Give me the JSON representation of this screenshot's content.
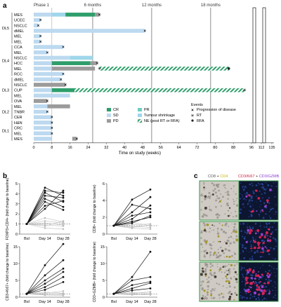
{
  "panel_a": {
    "letter": "a",
    "phase_label": "Phase 1",
    "milestones": [
      "6 months",
      "12 months",
      "18 months"
    ],
    "x_axis_label": "Time on study (weeks)",
    "x_ticks": [
      "0",
      "8",
      "16",
      "24",
      "32",
      "40",
      "48",
      "56",
      "64",
      "72",
      "80",
      "88",
      "96",
      "112",
      "135"
    ],
    "legend": {
      "title": "Events",
      "items": [
        "CR",
        "PR",
        "SD",
        "Tumour shrinkage",
        "PD",
        "NE (post RT or RFA)"
      ],
      "events": [
        "Progression of disease",
        "RT",
        "RFA"
      ]
    }
  },
  "chart_data": [
    {
      "type": "bar",
      "title": "",
      "xlabel": "Time on study (weeks)",
      "x_ticks": [
        0,
        8,
        16,
        24,
        32,
        40,
        48,
        56,
        64,
        72,
        80,
        88,
        96,
        112,
        135
      ],
      "colors": {
        "CR": "#2e9e6b",
        "PR": "#6ccfc0",
        "SD": "#bcd9ef",
        "PD": "#9b9b9b",
        "NE": "#2e9e6b",
        "shrink": "#9fd6ea"
      },
      "rows": [
        {
          "group": "DL5",
          "label": "MES",
          "segs": [
            [
              "SD",
              0,
              8
            ],
            [
              "shrink",
              8,
              14
            ],
            [
              "CR",
              14,
              27
            ],
            [
              "PD",
              27,
              29
            ]
          ],
          "events": [
            "x"
          ],
          "ev_at": [
            29
          ]
        },
        {
          "group": "DL5",
          "label": "UCEC",
          "segs": [
            [
              "SD",
              0,
              3
            ]
          ],
          "events": [
            "x"
          ],
          "ev_at": [
            3
          ]
        },
        {
          "group": "DL5",
          "label": "NSCLC",
          "segs": [
            [
              "SD",
              0,
              2
            ]
          ],
          "events": [
            "x"
          ],
          "ev_at": [
            2
          ]
        },
        {
          "group": "DL5",
          "label": "dMEL",
          "segs": [
            [
              "SD",
              0,
              49
            ]
          ],
          "events": [
            "x"
          ],
          "ev_at": [
            49
          ]
        },
        {
          "group": "DL5",
          "label": "MEL",
          "segs": [
            [
              "SD",
              0,
              3
            ]
          ],
          "events": [
            "x"
          ],
          "ev_at": [
            3
          ]
        },
        {
          "group": "DL5",
          "label": "MEL",
          "segs": [
            [
              "SD",
              0,
              3
            ]
          ],
          "events": [
            "x"
          ],
          "ev_at": [
            3
          ]
        },
        {
          "group": "DL4",
          "label": "CCA",
          "segs": [
            [
              "SD",
              0,
              13
            ]
          ],
          "events": [
            "x"
          ],
          "ev_at": [
            13
          ]
        },
        {
          "group": "DL4",
          "label": "MEL",
          "segs": [
            [
              "SD",
              0,
              6
            ]
          ],
          "events": [
            "x"
          ],
          "ev_at": [
            6
          ]
        },
        {
          "group": "DL4",
          "label": "NSCLC",
          "segs": [
            [
              "SD",
              0,
              16
            ],
            [
              "shrink",
              16,
              26
            ]
          ],
          "events": [],
          "ev_at": []
        },
        {
          "group": "DL4",
          "label": "HCC",
          "segs": [
            [
              "SD",
              0,
              8
            ],
            [
              "CR",
              8,
              25
            ],
            [
              "PD",
              25,
              28
            ]
          ],
          "events": [
            "x"
          ],
          "ev_at": [
            28
          ]
        },
        {
          "group": "DL4",
          "label": "MEL",
          "segs": [
            [
              "SD",
              0,
              8
            ],
            [
              "PD",
              8,
              27
            ],
            [
              "NE",
              29,
              86
            ]
          ],
          "events": [
            "rt",
            "rfa"
          ],
          "ev_at": [
            29,
            86
          ]
        },
        {
          "group": "DL4",
          "label": "RCC",
          "segs": [
            [
              "SD",
              0,
              13
            ]
          ],
          "events": [
            "x"
          ],
          "ev_at": [
            13
          ]
        },
        {
          "group": "DL3",
          "label": "dMEL",
          "segs": [
            [
              "SD",
              0,
              12
            ]
          ],
          "events": [
            "x"
          ],
          "ev_at": [
            12
          ]
        },
        {
          "group": "DL3",
          "label": "NSCLC",
          "segs": [
            [
              "PD",
              0,
              14
            ]
          ],
          "events": [
            "x"
          ],
          "ev_at": [
            14
          ]
        },
        {
          "group": "DL3",
          "label": "CUP",
          "segs": [
            [
              "SD",
              0,
              8
            ],
            [
              "CR",
              8,
              18
            ],
            [
              "NE",
              18,
              93
            ]
          ],
          "events": [
            "rt"
          ],
          "ev_at": [
            93
          ]
        },
        {
          "group": "DL3",
          "label": "MEL",
          "segs": [
            [
              "SD",
              0,
              16
            ]
          ],
          "events": [],
          "ev_at": []
        },
        {
          "group": "DL3",
          "label": "OVA",
          "segs": [
            [
              "PD",
              0,
              6
            ]
          ],
          "events": [
            "x"
          ],
          "ev_at": [
            6
          ]
        },
        {
          "group": "DL2",
          "label": "MEL",
          "segs": [
            [
              "SD",
              0,
              6
            ],
            [
              "PD",
              6,
              16
            ]
          ],
          "events": [],
          "ev_at": []
        },
        {
          "group": "DL2",
          "label": "TNBR",
          "segs": [
            [
              "SD",
              0,
              6
            ]
          ],
          "events": [
            "x"
          ],
          "ev_at": [
            6
          ]
        },
        {
          "group": "DL2",
          "label": "CER",
          "segs": [
            [
              "SD",
              0,
              8
            ]
          ],
          "events": [
            "x"
          ],
          "ev_at": [
            8
          ]
        },
        {
          "group": "DL1",
          "label": "H&N",
          "segs": [
            [
              "SD",
              0,
              8
            ]
          ],
          "events": [
            "x"
          ],
          "ev_at": [
            8
          ]
        },
        {
          "group": "DL1",
          "label": "CRC",
          "segs": [
            [
              "SD",
              0,
              8
            ]
          ],
          "events": [
            "x"
          ],
          "ev_at": [
            8
          ]
        },
        {
          "group": "DL1",
          "label": "MEL",
          "segs": [
            [
              "SD",
              0,
              8
            ]
          ],
          "events": [
            "x"
          ],
          "ev_at": [
            8
          ]
        },
        {
          "group": "DL1",
          "label": "MES",
          "segs": [
            [
              "SD",
              0,
              8
            ],
            [
              "PD",
              17,
              19
            ]
          ],
          "events": [
            "x"
          ],
          "ev_at": [
            19
          ]
        }
      ]
    },
    {
      "type": "line",
      "title": "",
      "ylabel": "FOXP3+CD4+ (fold change to baseline)",
      "x": [
        "Bsl",
        "Day 14",
        "Day 28"
      ],
      "ylim": [
        0,
        5
      ],
      "yticks": [
        0,
        1,
        2,
        3,
        4,
        5
      ],
      "responders": [
        [
          1,
          4.6,
          3.8
        ],
        [
          1,
          4.3,
          4.1
        ],
        [
          1,
          4.1,
          3.2
        ],
        [
          1,
          3.8,
          3.6
        ],
        [
          1,
          3.5,
          2.7
        ],
        [
          1,
          3.2,
          2.4
        ],
        [
          1,
          2.8,
          3.3
        ],
        [
          1,
          2.5,
          4.3
        ]
      ],
      "others": [
        [
          1,
          1.6,
          1.2
        ],
        [
          1,
          1.3,
          1.1
        ],
        [
          1,
          1.1,
          0.9
        ],
        [
          1,
          0.9,
          0.8
        ],
        [
          1,
          0.8,
          1.3
        ],
        [
          1,
          0.6,
          0.5
        ]
      ]
    },
    {
      "type": "line",
      "title": "",
      "ylabel": "CD8+ (fold change to baseline)",
      "x": [
        "Bsl",
        "Day 14",
        "Day 28"
      ],
      "ylim": [
        0,
        6
      ],
      "yticks": [
        0,
        2,
        4,
        6
      ],
      "responders": [
        [
          1,
          4.1,
          5.3
        ],
        [
          1,
          3.5,
          3.0
        ],
        [
          1,
          2.6,
          4.4
        ],
        [
          1,
          2.2,
          2.6
        ],
        [
          1,
          1.8,
          3.4
        ],
        [
          1,
          1.5,
          2.0
        ],
        [
          1,
          1.3,
          2.2
        ]
      ],
      "others": [
        [
          1,
          1.4,
          1.0
        ],
        [
          1,
          1.1,
          1.2
        ],
        [
          1,
          0.9,
          0.8
        ],
        [
          1,
          0.8,
          1.1
        ],
        [
          1,
          0.7,
          0.6
        ]
      ]
    },
    {
      "type": "line",
      "title": "",
      "ylabel": "CD3+Ki67+ (fold change to baseline)",
      "x": [
        "Bsl",
        "Day 14",
        "Day 28"
      ],
      "ylim": [
        0,
        15
      ],
      "yticks": [
        0,
        5,
        10,
        15
      ],
      "responders": [
        [
          1,
          9.5,
          15.8
        ],
        [
          1,
          6.5,
          11
        ],
        [
          1,
          5.0,
          8.5
        ],
        [
          1,
          4.0,
          7.5
        ],
        [
          1,
          3.0,
          6.0
        ],
        [
          1,
          2.2,
          4.5
        ]
      ],
      "others": [
        [
          1,
          1.5,
          1.2
        ],
        [
          1,
          1.2,
          1.8
        ],
        [
          1,
          0.9,
          0.8
        ],
        [
          1,
          0.6,
          0.5
        ],
        [
          1,
          0.8,
          1.1
        ]
      ]
    },
    {
      "type": "line",
      "title": "",
      "ylabel": "CD3+GZMB+ (fold change to baseline)",
      "x": [
        "Bsl",
        "Day 14",
        "Day 28"
      ],
      "ylim": [
        0,
        15
      ],
      "yticks": [
        0,
        5,
        10,
        15
      ],
      "responders": [
        [
          1,
          6.0,
          13.5
        ],
        [
          1,
          5.0,
          6.0
        ],
        [
          1,
          3.6,
          4.6
        ],
        [
          1,
          2.6,
          4.2
        ],
        [
          1,
          2.0,
          2.6
        ]
      ],
      "others": [
        [
          1,
          1.4,
          1.2
        ],
        [
          1,
          1.1,
          1.6
        ],
        [
          1,
          0.9,
          0.7
        ],
        [
          1,
          0.7,
          1.0
        ]
      ]
    }
  ],
  "panel_b": {
    "letter": "b"
  },
  "panel_c": {
    "letter": "c",
    "left_header": [
      "CD8",
      "+",
      "CD4"
    ],
    "right_header": [
      "CD3/Ki67",
      "+",
      "CD3/GZMB"
    ],
    "colors": {
      "cd8": "#555555",
      "cd4": "#c8b400",
      "ki67": "#cc2244",
      "gzmb": "#8a3ccf"
    }
  }
}
